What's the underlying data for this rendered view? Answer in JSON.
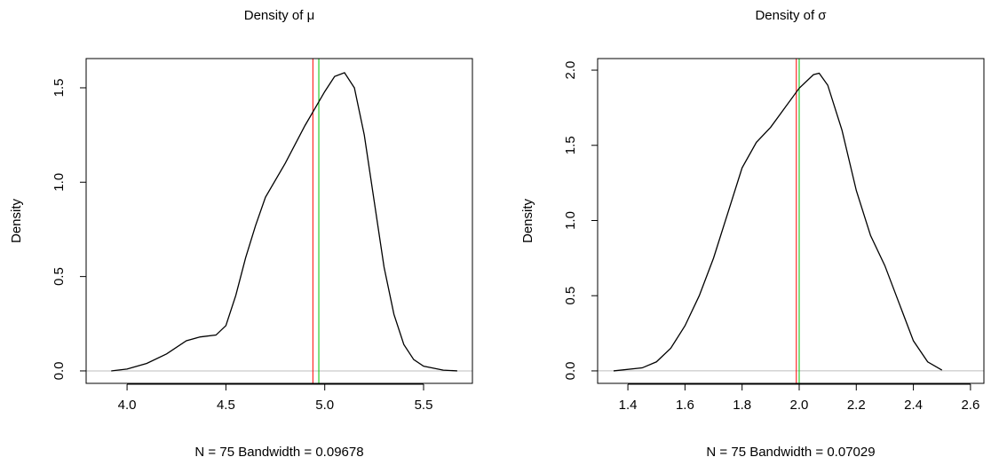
{
  "chart_data": [
    {
      "type": "line",
      "title": "Density of μ",
      "xlabel": "N = 75   Bandwidth = 0.09678",
      "ylabel": "Density",
      "x": [
        3.92,
        4.0,
        4.1,
        4.2,
        4.3,
        4.37,
        4.45,
        4.5,
        4.55,
        4.6,
        4.65,
        4.7,
        4.8,
        4.9,
        5.0,
        5.05,
        5.1,
        5.15,
        5.2,
        5.25,
        5.3,
        5.35,
        5.4,
        5.45,
        5.5,
        5.6,
        5.67
      ],
      "values": [
        0,
        0.01,
        0.04,
        0.09,
        0.16,
        0.18,
        0.19,
        0.24,
        0.4,
        0.6,
        0.77,
        0.92,
        1.1,
        1.3,
        1.48,
        1.56,
        1.58,
        1.5,
        1.25,
        0.9,
        0.55,
        0.3,
        0.14,
        0.06,
        0.025,
        0.004,
        0
      ],
      "color": "#000000",
      "vlines": [
        {
          "x": 4.94,
          "color": "#ff0000"
        },
        {
          "x": 4.97,
          "color": "#00c000"
        }
      ],
      "baseline": 0,
      "baseline_color": "#bebebe",
      "xlim": [
        3.793,
        5.747
      ],
      "ylim": [
        -0.066,
        1.655
      ],
      "xticks": [
        {
          "value": 4,
          "label": "4.0"
        },
        4.5,
        {
          "value": 5,
          "label": "5.0"
        },
        5.5
      ],
      "yticks": [
        {
          "value": 0,
          "label": "0.0"
        },
        0.5,
        {
          "value": 1,
          "label": "1.0"
        },
        1.5
      ]
    },
    {
      "type": "line",
      "title": "Density of σ",
      "xlabel": "N = 75   Bandwidth = 0.07029",
      "ylabel": "Density",
      "x": [
        1.35,
        1.45,
        1.5,
        1.55,
        1.6,
        1.65,
        1.7,
        1.75,
        1.8,
        1.85,
        1.9,
        1.95,
        2.0,
        2.05,
        2.07,
        2.1,
        2.15,
        2.2,
        2.25,
        2.3,
        2.35,
        2.4,
        2.45,
        2.5
      ],
      "values": [
        0,
        0.02,
        0.06,
        0.15,
        0.3,
        0.5,
        0.75,
        1.05,
        1.35,
        1.52,
        1.62,
        1.75,
        1.88,
        1.97,
        1.98,
        1.9,
        1.6,
        1.2,
        0.9,
        0.7,
        0.45,
        0.2,
        0.06,
        0.005
      ],
      "color": "#000000",
      "vlines": [
        {
          "x": 1.99,
          "color": "#ff0000"
        },
        {
          "x": 2.0,
          "color": "#00c000"
        }
      ],
      "baseline": 0,
      "baseline_color": "#bebebe",
      "xlim": [
        1.294,
        2.647
      ],
      "ylim": [
        -0.083,
        2.077
      ],
      "xticks": [
        1.4,
        1.6,
        1.8,
        {
          "value": 2,
          "label": "2.0"
        },
        2.2,
        2.4,
        2.6
      ],
      "yticks": [
        {
          "value": 0,
          "label": "0.0"
        },
        0.5,
        {
          "value": 1,
          "label": "1.0"
        },
        1.5,
        {
          "value": 2,
          "label": "2.0"
        }
      ]
    }
  ]
}
